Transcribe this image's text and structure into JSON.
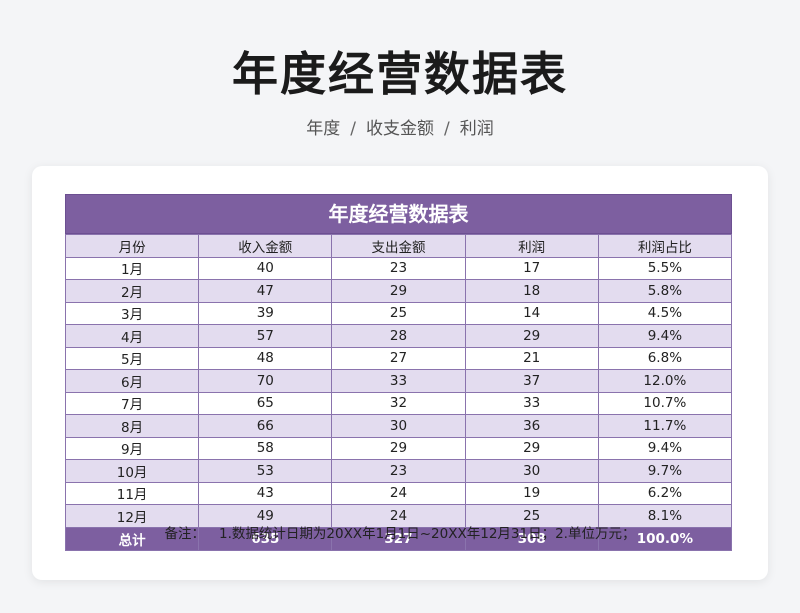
{
  "page": {
    "title": "年度经营数据表",
    "breadcrumb": [
      "年度",
      "收支金额",
      "利润"
    ]
  },
  "sheet": {
    "title": "年度经营数据表",
    "headers": [
      "月份",
      "收入金额",
      "支出金额",
      "利润",
      "利润占比"
    ],
    "rows": [
      [
        "1月",
        "40",
        "23",
        "17",
        "5.5%"
      ],
      [
        "2月",
        "47",
        "29",
        "18",
        "5.8%"
      ],
      [
        "3月",
        "39",
        "25",
        "14",
        "4.5%"
      ],
      [
        "4月",
        "57",
        "28",
        "29",
        "9.4%"
      ],
      [
        "5月",
        "48",
        "27",
        "21",
        "6.8%"
      ],
      [
        "6月",
        "70",
        "33",
        "37",
        "12.0%"
      ],
      [
        "7月",
        "65",
        "32",
        "33",
        "10.7%"
      ],
      [
        "8月",
        "66",
        "30",
        "36",
        "11.7%"
      ],
      [
        "9月",
        "58",
        "29",
        "29",
        "9.4%"
      ],
      [
        "10月",
        "53",
        "23",
        "30",
        "9.7%"
      ],
      [
        "11月",
        "43",
        "24",
        "19",
        "6.2%"
      ],
      [
        "12月",
        "49",
        "24",
        "25",
        "8.1%"
      ]
    ],
    "total": [
      "总计",
      "635",
      "327",
      "308",
      "100.0%"
    ]
  },
  "note": {
    "label": "备注：",
    "text": "1.数据统计日期为20XX年1月1日~20XX年12月31日；2.单位万元；"
  },
  "colors": {
    "header_purple": "#7d5fa0",
    "row_stripe": "#e3dcef",
    "background": "#f4f5f7"
  }
}
